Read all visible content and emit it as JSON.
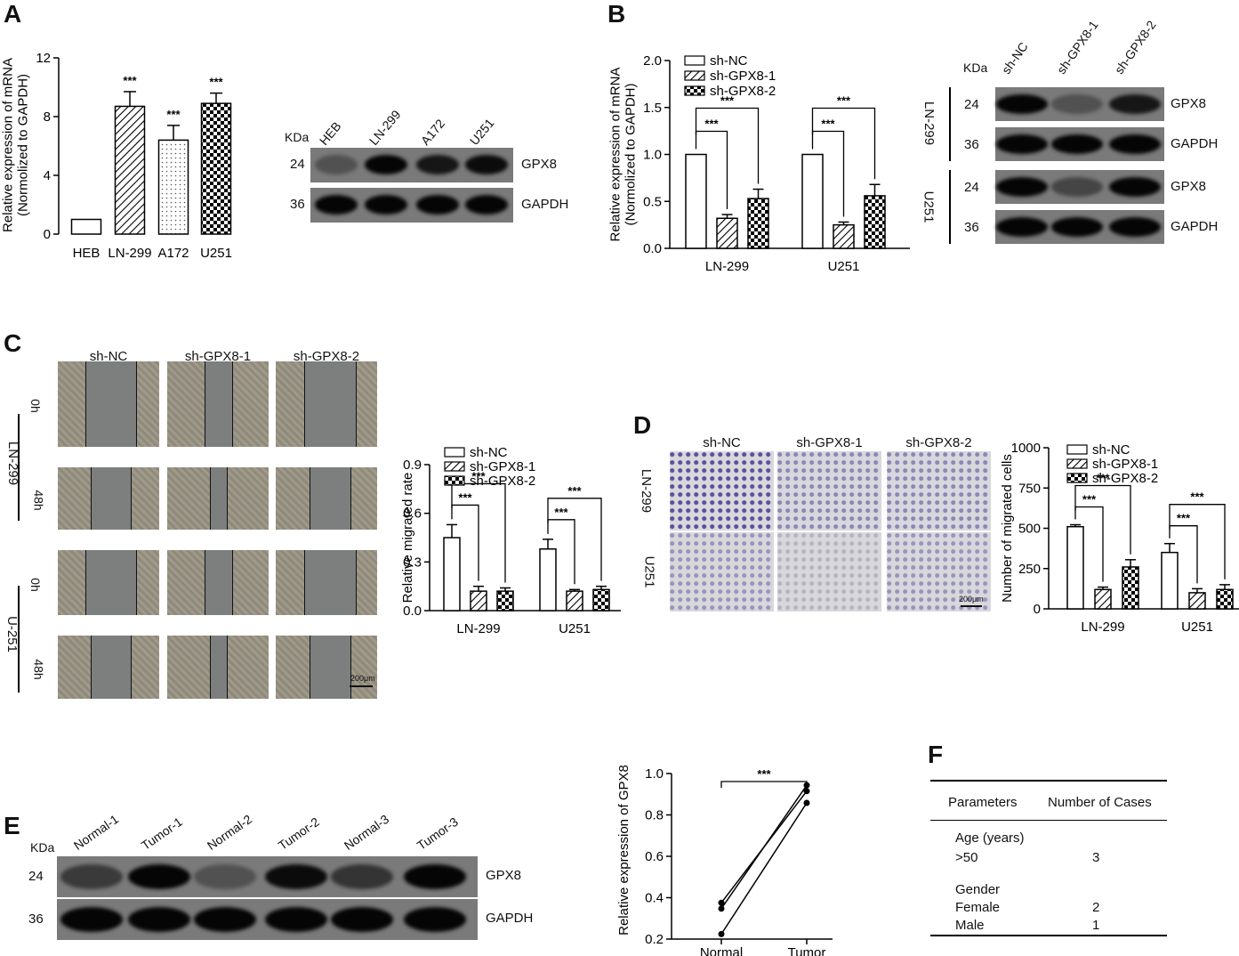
{
  "panels": {
    "A": "A",
    "B": "B",
    "C": "C",
    "D": "D",
    "E": "E",
    "F": "F"
  },
  "sig": "***",
  "chart_data": [
    {
      "id": "A-bar",
      "type": "bar",
      "ylabel_line1": "Relative expression of mRNA",
      "ylabel_line2": "(Normolized to GAPDH)",
      "categories": [
        "HEB",
        "LN-299",
        "A172",
        "U251"
      ],
      "values": [
        1.0,
        8.7,
        6.4,
        8.9
      ],
      "errors": [
        0,
        1.0,
        1.0,
        0.7
      ],
      "significance": [
        "",
        "***",
        "***",
        "***"
      ],
      "ylim": [
        0,
        12
      ],
      "yticks": [
        "0",
        "4",
        "8",
        "12"
      ]
    },
    {
      "id": "B-bar",
      "type": "bar",
      "ylabel_line1": "Relative expression of mRNA",
      "ylabel_line2": "(Normolized to GAPDH)",
      "categories": [
        "LN-299",
        "U251"
      ],
      "series": [
        {
          "name": "sh-NC",
          "values": [
            1.0,
            1.0
          ],
          "errors": [
            0,
            0
          ]
        },
        {
          "name": "sh-GPX8-1",
          "values": [
            0.32,
            0.25
          ],
          "errors": [
            0.04,
            0.03
          ]
        },
        {
          "name": "sh-GPX8-2",
          "values": [
            0.53,
            0.56
          ],
          "errors": [
            0.1,
            0.12
          ]
        }
      ],
      "ylim": [
        0,
        2.0
      ],
      "yticks": [
        "0.0",
        "0.5",
        "1.0",
        "1.5",
        "2.0"
      ]
    },
    {
      "id": "C-bar",
      "type": "bar",
      "ylabel": "Relative migrated rate",
      "categories": [
        "LN-299",
        "U251"
      ],
      "series": [
        {
          "name": "sh-NC",
          "values": [
            0.45,
            0.38
          ],
          "errors": [
            0.08,
            0.06
          ]
        },
        {
          "name": "sh-GPX8-1",
          "values": [
            0.12,
            0.12
          ],
          "errors": [
            0.03,
            0.01
          ]
        },
        {
          "name": "sh-GPX8-2",
          "values": [
            0.12,
            0.13
          ],
          "errors": [
            0.02,
            0.02
          ]
        }
      ],
      "ylim": [
        0,
        0.9
      ],
      "yticks": [
        "0.0",
        "0.3",
        "0.6",
        "0.9"
      ]
    },
    {
      "id": "D-bar",
      "type": "bar",
      "ylabel": "Number of migrated cells",
      "categories": [
        "LN-299",
        "U251"
      ],
      "series": [
        {
          "name": "sh-NC",
          "values": [
            510,
            350
          ],
          "errors": [
            12,
            55
          ]
        },
        {
          "name": "sh-GPX8-1",
          "values": [
            120,
            100
          ],
          "errors": [
            15,
            25
          ]
        },
        {
          "name": "sh-GPX8-2",
          "values": [
            260,
            120
          ],
          "errors": [
            45,
            30
          ]
        }
      ],
      "ylim": [
        0,
        1000
      ],
      "yticks": [
        "0",
        "250",
        "500",
        "750",
        "1000"
      ]
    },
    {
      "id": "E-line",
      "type": "line",
      "ylabel": "Relative expression of GPX8",
      "categories": [
        "Normal",
        "Tumor"
      ],
      "series": [
        {
          "values": [
            0.34,
            0.91
          ]
        },
        {
          "values": [
            0.31,
            0.94
          ]
        },
        {
          "values": [
            0.18,
            0.85
          ]
        }
      ],
      "ylim": [
        0.2,
        1.0
      ],
      "yticks": [
        "0.2",
        "0.4",
        "0.6",
        "0.8",
        "1.0"
      ]
    }
  ],
  "blotA": {
    "kda": "KDa",
    "lanes": [
      "HEB",
      "LN-299",
      "A172",
      "U251"
    ],
    "mw": [
      "24",
      "36"
    ],
    "proteins": [
      "GPX8",
      "GAPDH"
    ],
    "intensity": [
      0.35,
      1.0,
      0.85,
      0.95
    ]
  },
  "blotB": {
    "kda": "KDa",
    "lanes": [
      "sh-NC",
      "sh-GPX8-1",
      "sh-GPX8-2"
    ],
    "cells": [
      "LN-299",
      "U251"
    ],
    "mw": [
      "24",
      "36",
      "24",
      "36"
    ],
    "proteins": [
      "GPX8",
      "GAPDH",
      "GPX8",
      "GAPDH"
    ]
  },
  "panelC": {
    "cols": [
      "sh-NC",
      "sh-GPX8-1",
      "sh-GPX8-2"
    ],
    "cells": [
      "LN-299",
      "U-251"
    ],
    "times": [
      "0h",
      "48h",
      "0h",
      "48h"
    ],
    "scale": "200μm"
  },
  "panelD": {
    "cols": [
      "sh-NC",
      "sh-GPX8-1",
      "sh-GPX8-2"
    ],
    "rows": [
      "LN-299",
      "U251"
    ],
    "scale": "200μm"
  },
  "blotE": {
    "kda": "KDa",
    "lanes": [
      "Normal-1",
      "Tumor-1",
      "Normal-2",
      "Tumor-2",
      "Normal-3",
      "Tumor-3"
    ],
    "mw": [
      "24",
      "36"
    ],
    "proteins": [
      "GPX8",
      "GAPDH"
    ],
    "intensity": [
      0.55,
      1.0,
      0.35,
      0.95,
      0.6,
      1.0
    ]
  },
  "tableF": {
    "headers": [
      "Parameters",
      "Number of Cases"
    ],
    "rows": [
      {
        "param": "Age (years)",
        "value": ""
      },
      {
        "param": ">50",
        "value": "3"
      },
      {
        "param": "Gender",
        "value": ""
      },
      {
        "param": "Female",
        "value": "2"
      },
      {
        "param": "Male",
        "value": "1"
      }
    ]
  }
}
